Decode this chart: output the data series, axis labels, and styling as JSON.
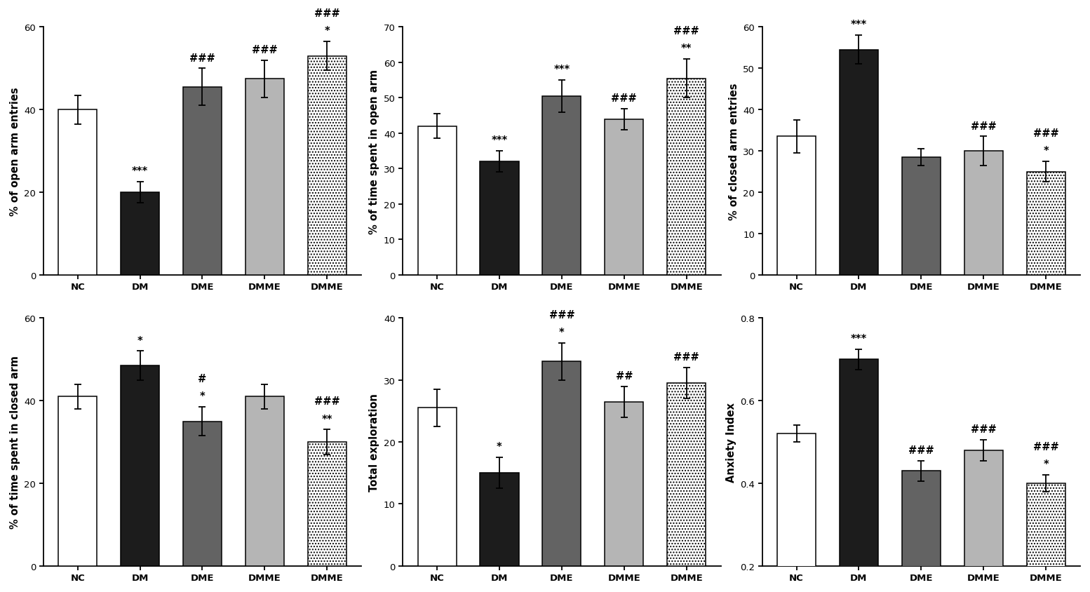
{
  "subplots": [
    {
      "ylabel": "% of open arm entries",
      "ylim": [
        0,
        60
      ],
      "yticks": [
        0,
        20,
        40,
        60
      ],
      "categories": [
        "NC",
        "DM",
        "DME",
        "DMME",
        "DMME"
      ],
      "values": [
        40.0,
        20.0,
        45.5,
        47.5,
        53.0
      ],
      "errors": [
        3.5,
        2.5,
        4.5,
        4.5,
        3.5
      ],
      "sig_lines": [
        [],
        [
          "***"
        ],
        [
          "###"
        ],
        [
          "###"
        ],
        [
          "*",
          "###"
        ]
      ],
      "colors": [
        "white",
        "dark",
        "medium",
        "light",
        "dotted"
      ]
    },
    {
      "ylabel": "% of time spent in open arm",
      "ylim": [
        0,
        70
      ],
      "yticks": [
        0,
        10,
        20,
        30,
        40,
        50,
        60,
        70
      ],
      "categories": [
        "NC",
        "DM",
        "DME",
        "DMME",
        "DMME"
      ],
      "values": [
        42.0,
        32.0,
        50.5,
        44.0,
        55.5
      ],
      "errors": [
        3.5,
        3.0,
        4.5,
        3.0,
        5.5
      ],
      "sig_lines": [
        [],
        [
          "***"
        ],
        [
          "***"
        ],
        [
          "###"
        ],
        [
          "**",
          "###"
        ]
      ],
      "colors": [
        "white",
        "dark",
        "medium",
        "light",
        "dotted"
      ]
    },
    {
      "ylabel": "% of closed arm entries",
      "ylim": [
        0,
        60
      ],
      "yticks": [
        0,
        10,
        20,
        30,
        40,
        50,
        60
      ],
      "categories": [
        "NC",
        "DM",
        "DME",
        "DMME",
        "DMME"
      ],
      "values": [
        33.5,
        54.5,
        28.5,
        30.0,
        25.0
      ],
      "errors": [
        4.0,
        3.5,
        2.0,
        3.5,
        2.5
      ],
      "sig_lines": [
        [],
        [
          "***"
        ],
        [],
        [
          "###"
        ],
        [
          "*",
          "###"
        ]
      ],
      "colors": [
        "white",
        "dark",
        "medium",
        "light",
        "dotted"
      ]
    },
    {
      "ylabel": "% of time spent in closed arm",
      "ylim": [
        0,
        60
      ],
      "yticks": [
        0,
        20,
        40,
        60
      ],
      "categories": [
        "NC",
        "DM",
        "DME",
        "DMME",
        "DMME"
      ],
      "values": [
        41.0,
        48.5,
        35.0,
        41.0,
        30.0
      ],
      "errors": [
        3.0,
        3.5,
        3.5,
        3.0,
        3.0
      ],
      "sig_lines": [
        [],
        [
          "*"
        ],
        [
          "*",
          "#"
        ],
        [],
        [
          "**",
          "###"
        ]
      ],
      "colors": [
        "white",
        "dark",
        "medium",
        "light",
        "dotted"
      ]
    },
    {
      "ylabel": "Total exploration",
      "ylim": [
        0,
        40
      ],
      "yticks": [
        0,
        10,
        20,
        30,
        40
      ],
      "categories": [
        "NC",
        "DM",
        "DME",
        "DMME",
        "DMME"
      ],
      "values": [
        25.5,
        15.0,
        33.0,
        26.5,
        29.5
      ],
      "errors": [
        3.0,
        2.5,
        3.0,
        2.5,
        2.5
      ],
      "sig_lines": [
        [],
        [
          "*"
        ],
        [
          "*",
          "###"
        ],
        [
          "##"
        ],
        [
          "###"
        ]
      ],
      "colors": [
        "white",
        "dark",
        "medium",
        "light",
        "dotted"
      ]
    },
    {
      "ylabel": "Anxiety Index",
      "ylim": [
        0.2,
        0.8
      ],
      "yticks": [
        0.2,
        0.4,
        0.6,
        0.8
      ],
      "categories": [
        "NC",
        "DM",
        "DME",
        "DMME",
        "DMME"
      ],
      "values": [
        0.52,
        0.7,
        0.43,
        0.48,
        0.4
      ],
      "errors": [
        0.02,
        0.025,
        0.025,
        0.025,
        0.02
      ],
      "sig_lines": [
        [],
        [
          "***"
        ],
        [
          "###"
        ],
        [
          "###"
        ],
        [
          "*",
          "###"
        ]
      ],
      "colors": [
        "white",
        "dark",
        "medium",
        "light",
        "dotted"
      ]
    }
  ],
  "color_map": {
    "white": "#ffffff",
    "dark": "#1c1c1c",
    "medium": "#636363",
    "light": "#b5b5b5",
    "dotted": "#ffffff"
  },
  "bar_width": 0.62,
  "fontsize_ylabel": 10.5,
  "fontsize_tick": 9.5,
  "fontsize_sig": 10.5
}
